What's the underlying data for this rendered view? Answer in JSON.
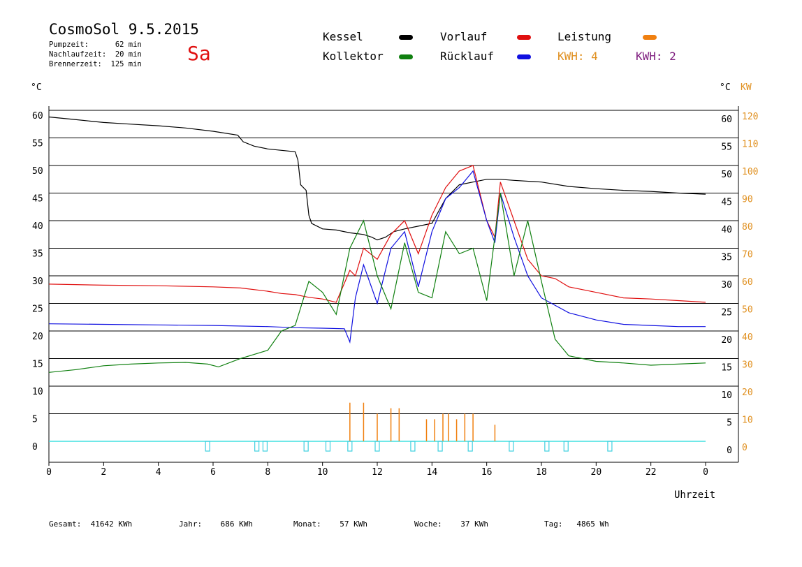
{
  "header": {
    "title": "CosmoSol 9.5.2015",
    "pumpzeit": "Pumpzeit:      62 min",
    "nachlaufzeit": "Nachlaufzeit:  20 min",
    "brennerzeit": "Brennerzeit:  125 min",
    "day": "Sa"
  },
  "legend": {
    "kessel": {
      "label": "Kessel",
      "color": "#000000"
    },
    "vorlauf": {
      "label": "Vorlauf",
      "color": "#e01010"
    },
    "leistung": {
      "label": "Leistung",
      "color": "#f08010"
    },
    "kollektor": {
      "label": "Kollektor",
      "color": "#108010"
    },
    "ruecklauf": {
      "label": "Rücklauf",
      "color": "#1010e0"
    },
    "kwh1": {
      "label": "KWH: 4",
      "color": "#e09020"
    },
    "kwh2": {
      "label": "KWH: 2",
      "color": "#802080"
    }
  },
  "axes": {
    "left_unit": "°C",
    "right_unit": "°C",
    "right_unit2": "KW",
    "xlabel": "Uhrzeit"
  },
  "footer": {
    "gesamt": "Gesamt:  41642 KWh",
    "jahr": "Jahr:    686 KWh",
    "monat": "Monat:    57 KWh",
    "woche": "Woche:    37 KWh",
    "tag": "Tag:   4865 Wh"
  },
  "chart_data": {
    "type": "line",
    "x_ticks": [
      "0",
      "2",
      "4",
      "6",
      "8",
      "10",
      "12",
      "14",
      "16",
      "18",
      "20",
      "22",
      "0"
    ],
    "y_left_ticks": [
      60,
      55,
      50,
      45,
      40,
      35,
      30,
      25,
      20,
      15,
      10,
      5,
      0
    ],
    "y_right_ticks": [
      60,
      55,
      50,
      45,
      40,
      35,
      30,
      25,
      20,
      15,
      10,
      5,
      0
    ],
    "y_right2_ticks": [
      120,
      110,
      100,
      90,
      80,
      70,
      60,
      50,
      40,
      30,
      20,
      10,
      0
    ],
    "xlim": [
      0,
      24
    ],
    "ylim": [
      -4,
      62
    ],
    "series": [
      {
        "name": "Kessel",
        "color": "#000000",
        "x": [
          0,
          1,
          2,
          3,
          4,
          5,
          6,
          6.9,
          7.1,
          7.5,
          8,
          9,
          9.1,
          9.2,
          9.4,
          9.5,
          9.6,
          10,
          10.5,
          11,
          11.5,
          11.8,
          12,
          12.3,
          12.6,
          13,
          13.5,
          14,
          14.5,
          15,
          15.5,
          16,
          16.5,
          17,
          18,
          19,
          20,
          21,
          22,
          23,
          24
        ],
        "y": [
          58.8,
          58.3,
          57.8,
          57.5,
          57.2,
          56.8,
          56.2,
          55.5,
          54.3,
          53.5,
          53,
          52.5,
          51,
          46.5,
          45.5,
          41,
          39.5,
          38.5,
          38.3,
          37.8,
          37.5,
          37,
          36.5,
          37,
          38,
          38.5,
          39,
          39.5,
          44,
          46.5,
          47,
          47.5,
          47.5,
          47.3,
          47,
          46.2,
          45.8,
          45.5,
          45.3,
          45,
          44.8
        ]
      },
      {
        "name": "Vorlauf",
        "color": "#e01010",
        "x": [
          0,
          2,
          4,
          6,
          7,
          8,
          8.5,
          9,
          9.5,
          10,
          10.5,
          11,
          11.2,
          11.5,
          12,
          12.5,
          13,
          13.5,
          14,
          14.5,
          15,
          15.5,
          16,
          16.3,
          16.5,
          17,
          17.5,
          18,
          18.5,
          19,
          20,
          21,
          22,
          23,
          24
        ],
        "y": [
          28.5,
          28.3,
          28.2,
          28,
          27.8,
          27.2,
          26.8,
          26.6,
          26.1,
          25.8,
          25.2,
          31,
          30,
          35,
          33,
          37.5,
          40,
          34,
          41,
          46,
          49,
          50,
          40,
          37,
          47,
          40,
          33,
          30,
          29.5,
          28,
          27,
          26,
          25.8,
          25.5,
          25.2
        ]
      },
      {
        "name": "Rücklauf",
        "color": "#1010e0",
        "x": [
          0,
          2,
          4,
          6,
          8,
          9,
          10,
          10.8,
          11,
          11.2,
          11.5,
          12,
          12.5,
          13,
          13.5,
          14,
          14.5,
          15,
          15.5,
          16,
          16.3,
          16.5,
          17,
          17.5,
          18,
          19,
          20,
          21,
          22,
          23,
          24
        ],
        "y": [
          21.3,
          21.2,
          21.1,
          21,
          20.8,
          20.6,
          20.5,
          20.4,
          18,
          26,
          32,
          25,
          35,
          38,
          28,
          38,
          44,
          46,
          49,
          40,
          36,
          45,
          37,
          30,
          26,
          23.3,
          22,
          21.2,
          21,
          20.8,
          20.8
        ]
      },
      {
        "name": "Kollektor",
        "color": "#108010",
        "x": [
          0,
          1,
          2,
          3,
          4,
          5,
          5.8,
          6.2,
          7,
          8,
          8.5,
          9,
          9.5,
          10,
          10.5,
          11,
          11.5,
          12,
          12.5,
          13,
          13.5,
          14,
          14.5,
          15,
          15.5,
          16,
          16.5,
          17,
          17.5,
          18,
          18.5,
          19,
          20,
          21,
          22,
          23,
          24
        ],
        "y": [
          12.5,
          13,
          13.7,
          14,
          14.2,
          14.3,
          14,
          13.5,
          15,
          16.5,
          20,
          21,
          29,
          27,
          23,
          35,
          40,
          30,
          24,
          36,
          27,
          26,
          38,
          34,
          35,
          25.5,
          45,
          30,
          40,
          29,
          18.5,
          15.5,
          14.5,
          14.2,
          13.8,
          14,
          14.2
        ]
      }
    ],
    "bars": {
      "name": "Leistung",
      "color": "#f08010",
      "x": [
        11.0,
        11.5,
        12.0,
        12.5,
        12.8,
        13.8,
        14.1,
        14.4,
        14.6,
        14.9,
        15.2,
        15.5,
        16.3
      ],
      "values": [
        7,
        7,
        5,
        6,
        6,
        4,
        4,
        5,
        5,
        4,
        5,
        5,
        3
      ]
    },
    "markers_cyan": [
      5.8,
      7.6,
      7.9,
      9.4,
      10.2,
      11.0,
      12.0,
      13.3,
      14.3,
      15.4,
      16.9,
      18.2,
      18.9,
      20.5
    ]
  }
}
